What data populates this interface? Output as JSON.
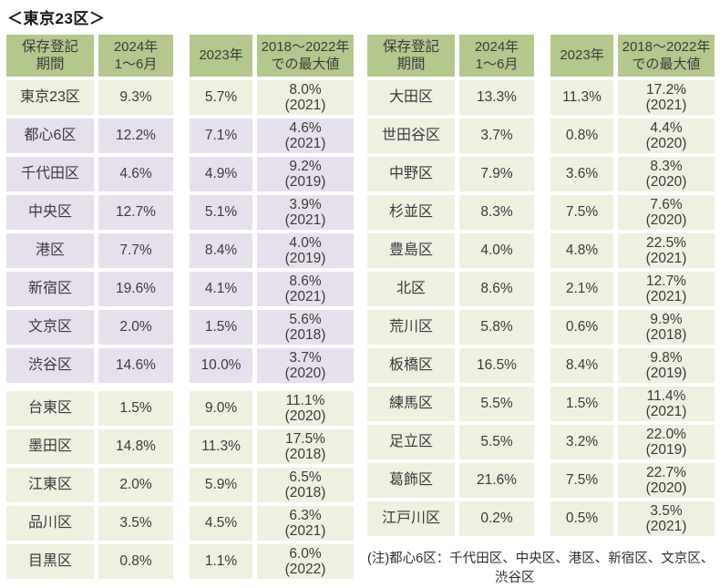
{
  "colors": {
    "header_bg": "#b4c88d",
    "green_bg": "#edf1e0",
    "purple_bg": "#e6e0ed",
    "text": "#3b3b3b"
  },
  "chart_data": {
    "type": "table",
    "title": "＜東京23区＞",
    "header": {
      "period": [
        "保存登記",
        "期間"
      ],
      "h2024": [
        "2024年",
        "1〜6月"
      ],
      "h2023": "2023年",
      "hmax": [
        "2018〜2022年",
        "での最大値"
      ]
    },
    "tables": [
      {
        "rows": [
          {
            "name": "東京23区",
            "v2024": "9.3%",
            "v2023": "5.7%",
            "max": "8.0%",
            "max_year": "(2021)",
            "tone": "green",
            "gap_before": false
          },
          {
            "name": "都心6区",
            "v2024": "12.2%",
            "v2023": "7.1%",
            "max": "4.6%",
            "max_year": "(2021)",
            "tone": "purple",
            "gap_before": false
          },
          {
            "name": "千代田区",
            "v2024": "4.6%",
            "v2023": "4.9%",
            "max": "9.2%",
            "max_year": "(2019)",
            "tone": "purple",
            "gap_before": false
          },
          {
            "name": "中央区",
            "v2024": "12.7%",
            "v2023": "5.1%",
            "max": "3.9%",
            "max_year": "(2021)",
            "tone": "purple",
            "gap_before": false
          },
          {
            "name": "港区",
            "v2024": "7.7%",
            "v2023": "8.4%",
            "max": "4.0%",
            "max_year": "(2019)",
            "tone": "purple",
            "gap_before": false
          },
          {
            "name": "新宿区",
            "v2024": "19.6%",
            "v2023": "4.1%",
            "max": "8.6%",
            "max_year": "(2021)",
            "tone": "purple",
            "gap_before": false
          },
          {
            "name": "文京区",
            "v2024": "2.0%",
            "v2023": "1.5%",
            "max": "5.6%",
            "max_year": "(2018)",
            "tone": "purple",
            "gap_before": false
          },
          {
            "name": "渋谷区",
            "v2024": "14.6%",
            "v2023": "10.0%",
            "max": "3.7%",
            "max_year": "(2020)",
            "tone": "purple",
            "gap_before": false
          },
          {
            "name": "台東区",
            "v2024": "1.5%",
            "v2023": "9.0%",
            "max": "11.1%",
            "max_year": "(2020)",
            "tone": "green",
            "gap_before": true
          },
          {
            "name": "墨田区",
            "v2024": "14.8%",
            "v2023": "11.3%",
            "max": "17.5%",
            "max_year": "(2018)",
            "tone": "green",
            "gap_before": false
          },
          {
            "name": "江東区",
            "v2024": "2.0%",
            "v2023": "5.9%",
            "max": "6.5%",
            "max_year": "(2018)",
            "tone": "green",
            "gap_before": false
          },
          {
            "name": "品川区",
            "v2024": "3.5%",
            "v2023": "4.5%",
            "max": "6.3%",
            "max_year": "(2021)",
            "tone": "green",
            "gap_before": false
          },
          {
            "name": "目黒区",
            "v2024": "0.8%",
            "v2023": "1.1%",
            "max": "6.0%",
            "max_year": "(2022)",
            "tone": "green",
            "gap_before": false
          }
        ]
      },
      {
        "rows": [
          {
            "name": "大田区",
            "v2024": "13.3%",
            "v2023": "11.3%",
            "max": "17.2%",
            "max_year": "(2021)",
            "tone": "green",
            "gap_before": false
          },
          {
            "name": "世田谷区",
            "v2024": "3.7%",
            "v2023": "0.8%",
            "max": "4.4%",
            "max_year": "(2020)",
            "tone": "green",
            "gap_before": false
          },
          {
            "name": "中野区",
            "v2024": "7.9%",
            "v2023": "3.6%",
            "max": "8.3%",
            "max_year": "(2020)",
            "tone": "green",
            "gap_before": false
          },
          {
            "name": "杉並区",
            "v2024": "8.3%",
            "v2023": "7.5%",
            "max": "7.6%",
            "max_year": "(2020)",
            "tone": "green",
            "gap_before": false
          },
          {
            "name": "豊島区",
            "v2024": "4.0%",
            "v2023": "4.8%",
            "max": "22.5%",
            "max_year": "(2021)",
            "tone": "green",
            "gap_before": false
          },
          {
            "name": "北区",
            "v2024": "8.6%",
            "v2023": "2.1%",
            "max": "12.7%",
            "max_year": "(2021)",
            "tone": "green",
            "gap_before": false
          },
          {
            "name": "荒川区",
            "v2024": "5.8%",
            "v2023": "0.6%",
            "max": "9.9%",
            "max_year": "(2018)",
            "tone": "green",
            "gap_before": false
          },
          {
            "name": "板橋区",
            "v2024": "16.5%",
            "v2023": "8.4%",
            "max": "9.8%",
            "max_year": "(2019)",
            "tone": "green",
            "gap_before": false
          },
          {
            "name": "練馬区",
            "v2024": "5.5%",
            "v2023": "1.5%",
            "max": "11.4%",
            "max_year": "(2021)",
            "tone": "green",
            "gap_before": false
          },
          {
            "name": "足立区",
            "v2024": "5.5%",
            "v2023": "3.2%",
            "max": "22.0%",
            "max_year": "(2019)",
            "tone": "green",
            "gap_before": false
          },
          {
            "name": "葛飾区",
            "v2024": "21.6%",
            "v2023": "7.5%",
            "max": "22.7%",
            "max_year": "(2020)",
            "tone": "green",
            "gap_before": false
          },
          {
            "name": "江戸川区",
            "v2024": "0.2%",
            "v2023": "0.5%",
            "max": "3.5%",
            "max_year": "(2021)",
            "tone": "green",
            "gap_before": false
          }
        ]
      }
    ],
    "note": [
      "(注)都心6区：千代田区、中央区、港区、新宿区、文京区、",
      "渋谷区"
    ]
  }
}
